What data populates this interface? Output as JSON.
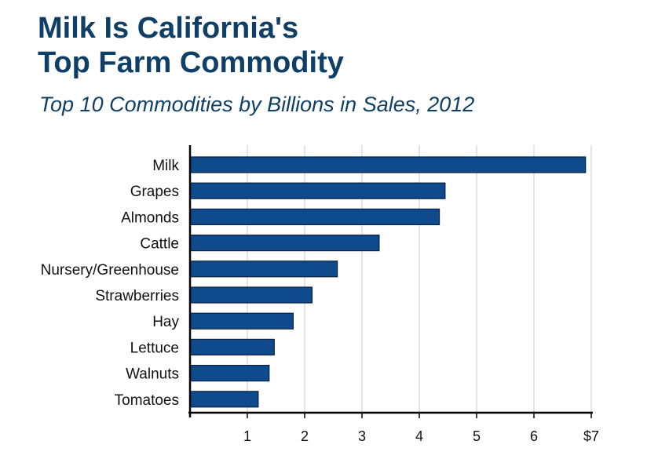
{
  "title_line1": "Milk Is California's",
  "title_line2": "Top Farm Commodity",
  "subtitle": "Top 10 Commodities by Billions in Sales, 2012",
  "colors": {
    "title": "#0f3f66",
    "bar_fill": "#0e4a8c",
    "bar_stroke": "#0a2240",
    "grid": "#c8c8c8",
    "axis": "#000000"
  },
  "chart_data": {
    "type": "bar",
    "orientation": "horizontal",
    "categories": [
      "Milk",
      "Grapes",
      "Almonds",
      "Cattle",
      "Nursery/Greenhouse",
      "Strawberries",
      "Hay",
      "Lettuce",
      "Walnuts",
      "Tomatoes"
    ],
    "values": [
      6.9,
      4.45,
      4.35,
      3.3,
      2.57,
      2.13,
      1.8,
      1.47,
      1.38,
      1.19
    ],
    "xlim": [
      0,
      7
    ],
    "xticks": [
      1,
      2,
      3,
      4,
      5,
      6,
      7
    ],
    "xtick_labels": [
      "1",
      "2",
      "3",
      "4",
      "5",
      "6",
      "$7"
    ],
    "grid": "vertical",
    "legend": "none"
  }
}
